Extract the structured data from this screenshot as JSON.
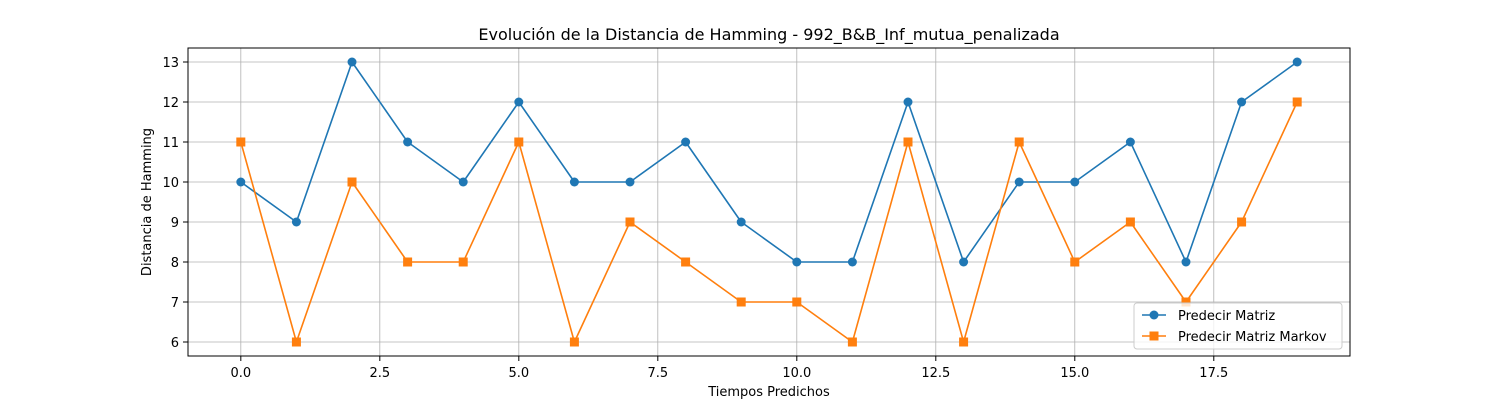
{
  "chart_data": {
    "type": "line",
    "title": "Evolución de la Distancia de Hamming - 992_B&B_Inf_mutua_penalizada",
    "xlabel": "Tiempos Predichos",
    "ylabel": "Distancia de Hamming",
    "x": [
      0,
      1,
      2,
      3,
      4,
      5,
      6,
      7,
      8,
      9,
      10,
      11,
      12,
      13,
      14,
      15,
      16,
      17,
      18,
      19
    ],
    "xlim": [
      -0.95,
      19.95
    ],
    "ylim": [
      5.65,
      13.35
    ],
    "xticks": [
      0.0,
      2.5,
      5.0,
      7.5,
      10.0,
      12.5,
      15.0,
      17.5
    ],
    "xtick_labels": [
      "0.0",
      "2.5",
      "5.0",
      "7.5",
      "10.0",
      "12.5",
      "15.0",
      "17.5"
    ],
    "yticks": [
      6,
      7,
      8,
      9,
      10,
      11,
      12,
      13
    ],
    "ytick_labels": [
      "6",
      "7",
      "8",
      "9",
      "10",
      "11",
      "12",
      "13"
    ],
    "grid": true,
    "legend_position": "lower-right",
    "series": [
      {
        "name": "Predecir Matriz",
        "color": "#1f77b4",
        "marker": "circle",
        "values": [
          10,
          9,
          13,
          11,
          10,
          12,
          10,
          10,
          11,
          9,
          8,
          8,
          12,
          8,
          10,
          10,
          11,
          8,
          12,
          13
        ]
      },
      {
        "name": "Predecir Matriz Markov",
        "color": "#ff7f0e",
        "marker": "square",
        "values": [
          11,
          6,
          10,
          8,
          8,
          11,
          6,
          9,
          8,
          7,
          7,
          6,
          11,
          6,
          11,
          8,
          9,
          7,
          9,
          12
        ]
      }
    ]
  }
}
